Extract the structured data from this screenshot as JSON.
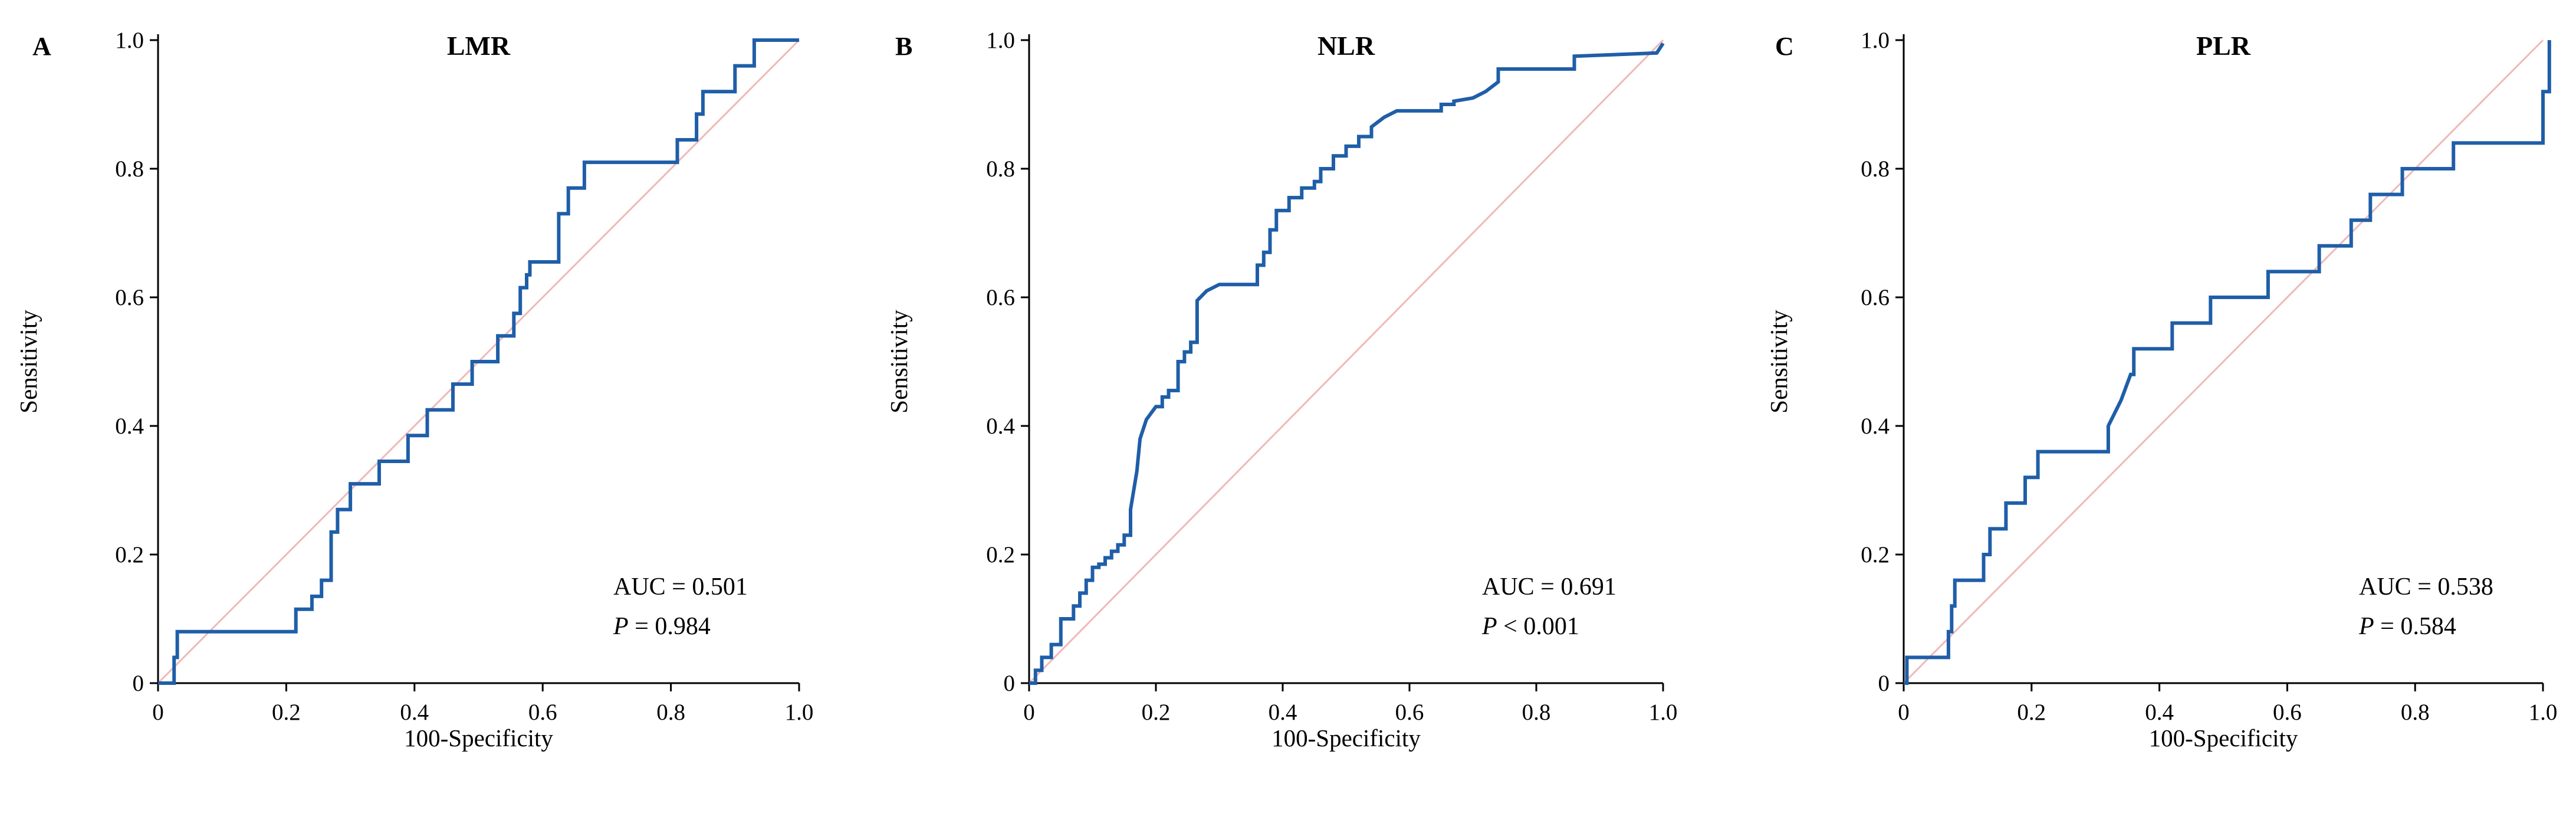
{
  "figure": {
    "tick_labels_x": [
      "0",
      "0.2",
      "0.4",
      "0.6",
      "0.8",
      "1.0"
    ],
    "tick_labels_y": [
      "0",
      "0.2",
      "0.4",
      "0.6",
      "0.8",
      "1.0"
    ]
  },
  "chart_data": [
    {
      "type": "line",
      "panel": "A",
      "title": "LMR",
      "xlabel": "100-Specificity",
      "ylabel": "Sensitivity",
      "xlim": [
        0,
        1
      ],
      "ylim": [
        0,
        1
      ],
      "auc_text": "AUC = 0.501",
      "p_label": "P",
      "p_text": " = 0.984",
      "series": [
        {
          "name": "ROC",
          "color": "#1f5ea8",
          "x": [
            0,
            0.025,
            0.025,
            0.03,
            0.03,
            0.215,
            0.215,
            0.24,
            0.24,
            0.255,
            0.255,
            0.27,
            0.27,
            0.28,
            0.28,
            0.3,
            0.3,
            0.345,
            0.345,
            0.39,
            0.39,
            0.42,
            0.42,
            0.46,
            0.46,
            0.49,
            0.49,
            0.53,
            0.53,
            0.555,
            0.555,
            0.565,
            0.565,
            0.575,
            0.575,
            0.58,
            0.58,
            0.59,
            0.59,
            0.625,
            0.625,
            0.64,
            0.64,
            0.665,
            0.665,
            0.7,
            0.7,
            0.81,
            0.81,
            0.84,
            0.84,
            0.85,
            0.85,
            0.9,
            0.9,
            0.93,
            0.93,
            1.0
          ],
          "y": [
            0,
            0,
            0.04,
            0.04,
            0.08,
            0.08,
            0.115,
            0.115,
            0.135,
            0.135,
            0.16,
            0.16,
            0.235,
            0.235,
            0.27,
            0.27,
            0.31,
            0.31,
            0.345,
            0.345,
            0.385,
            0.385,
            0.425,
            0.425,
            0.465,
            0.465,
            0.5,
            0.5,
            0.54,
            0.54,
            0.575,
            0.575,
            0.615,
            0.615,
            0.635,
            0.635,
            0.655,
            0.655,
            0.655,
            0.655,
            0.73,
            0.73,
            0.77,
            0.77,
            0.81,
            0.81,
            0.81,
            0.81,
            0.845,
            0.845,
            0.885,
            0.885,
            0.92,
            0.92,
            0.96,
            0.96,
            1.0,
            1.0
          ]
        },
        {
          "name": "Reference",
          "color": "#f0b8b8",
          "x": [
            0,
            1
          ],
          "y": [
            0,
            1
          ]
        }
      ]
    },
    {
      "type": "line",
      "panel": "B",
      "title": "NLR",
      "xlabel": "100-Specificity",
      "ylabel": "Sensitivity",
      "xlim": [
        0,
        1
      ],
      "ylim": [
        0,
        1
      ],
      "auc_text": "AUC = 0.691",
      "p_label": "P",
      "p_text": " < 0.001",
      "series": [
        {
          "name": "ROC",
          "color": "#1f5ea8",
          "x": [
            0,
            0.01,
            0.01,
            0.02,
            0.02,
            0.035,
            0.035,
            0.05,
            0.05,
            0.07,
            0.07,
            0.08,
            0.08,
            0.09,
            0.09,
            0.1,
            0.1,
            0.11,
            0.11,
            0.12,
            0.12,
            0.13,
            0.13,
            0.14,
            0.14,
            0.15,
            0.15,
            0.16,
            0.16,
            0.17,
            0.175,
            0.185,
            0.2,
            0.21,
            0.21,
            0.22,
            0.22,
            0.235,
            0.235,
            0.245,
            0.245,
            0.255,
            0.255,
            0.265,
            0.265,
            0.28,
            0.3,
            0.36,
            0.36,
            0.37,
            0.37,
            0.38,
            0.38,
            0.39,
            0.39,
            0.41,
            0.41,
            0.43,
            0.43,
            0.45,
            0.45,
            0.46,
            0.46,
            0.48,
            0.48,
            0.5,
            0.5,
            0.52,
            0.52,
            0.54,
            0.54,
            0.56,
            0.58,
            0.65,
            0.65,
            0.67,
            0.67,
            0.7,
            0.72,
            0.74,
            0.74,
            0.86,
            0.86,
            0.99,
            1.0
          ],
          "y": [
            0,
            0,
            0.02,
            0.02,
            0.04,
            0.04,
            0.06,
            0.06,
            0.1,
            0.1,
            0.12,
            0.12,
            0.14,
            0.14,
            0.16,
            0.16,
            0.18,
            0.18,
            0.185,
            0.185,
            0.195,
            0.195,
            0.205,
            0.205,
            0.215,
            0.215,
            0.23,
            0.23,
            0.27,
            0.33,
            0.38,
            0.41,
            0.43,
            0.43,
            0.445,
            0.445,
            0.455,
            0.455,
            0.5,
            0.5,
            0.515,
            0.515,
            0.53,
            0.53,
            0.595,
            0.61,
            0.62,
            0.62,
            0.65,
            0.65,
            0.67,
            0.67,
            0.705,
            0.705,
            0.735,
            0.735,
            0.755,
            0.755,
            0.77,
            0.77,
            0.78,
            0.78,
            0.8,
            0.8,
            0.82,
            0.82,
            0.835,
            0.835,
            0.85,
            0.85,
            0.865,
            0.88,
            0.89,
            0.89,
            0.9,
            0.9,
            0.905,
            0.91,
            0.92,
            0.935,
            0.955,
            0.955,
            0.975,
            0.98,
            0.995
          ]
        },
        {
          "name": "Reference",
          "color": "#f0b8b8",
          "x": [
            0,
            1
          ],
          "y": [
            0,
            1
          ]
        }
      ]
    },
    {
      "type": "line",
      "panel": "C",
      "title": "PLR",
      "xlabel": "100-Specificity",
      "ylabel": "Sensitivity",
      "xlim": [
        0,
        1
      ],
      "ylim": [
        0,
        1
      ],
      "auc_text": "AUC = 0.538",
      "p_label": "P",
      "p_text": " = 0.584",
      "series": [
        {
          "name": "ROC",
          "color": "#1f5ea8",
          "x": [
            0,
            0.005,
            0.005,
            0.07,
            0.07,
            0.075,
            0.075,
            0.08,
            0.08,
            0.085,
            0.085,
            0.125,
            0.125,
            0.135,
            0.135,
            0.16,
            0.16,
            0.19,
            0.19,
            0.21,
            0.21,
            0.32,
            0.32,
            0.34,
            0.355,
            0.36,
            0.36,
            0.42,
            0.42,
            0.48,
            0.48,
            0.57,
            0.57,
            0.65,
            0.65,
            0.7,
            0.7,
            0.73,
            0.73,
            0.78,
            0.78,
            0.86,
            0.86,
            1.0,
            1.0,
            1.01,
            1.01
          ],
          "y": [
            0,
            0,
            0.04,
            0.04,
            0.08,
            0.08,
            0.12,
            0.12,
            0.16,
            0.16,
            0.16,
            0.16,
            0.2,
            0.2,
            0.24,
            0.24,
            0.28,
            0.28,
            0.32,
            0.32,
            0.36,
            0.36,
            0.4,
            0.44,
            0.48,
            0.48,
            0.52,
            0.52,
            0.56,
            0.56,
            0.6,
            0.6,
            0.64,
            0.64,
            0.68,
            0.68,
            0.72,
            0.72,
            0.76,
            0.76,
            0.8,
            0.8,
            0.84,
            0.84,
            0.92,
            0.92,
            1.0
          ]
        },
        {
          "name": "Reference",
          "color": "#f0b8b8",
          "x": [
            0,
            1
          ],
          "y": [
            0,
            1
          ]
        }
      ]
    }
  ]
}
